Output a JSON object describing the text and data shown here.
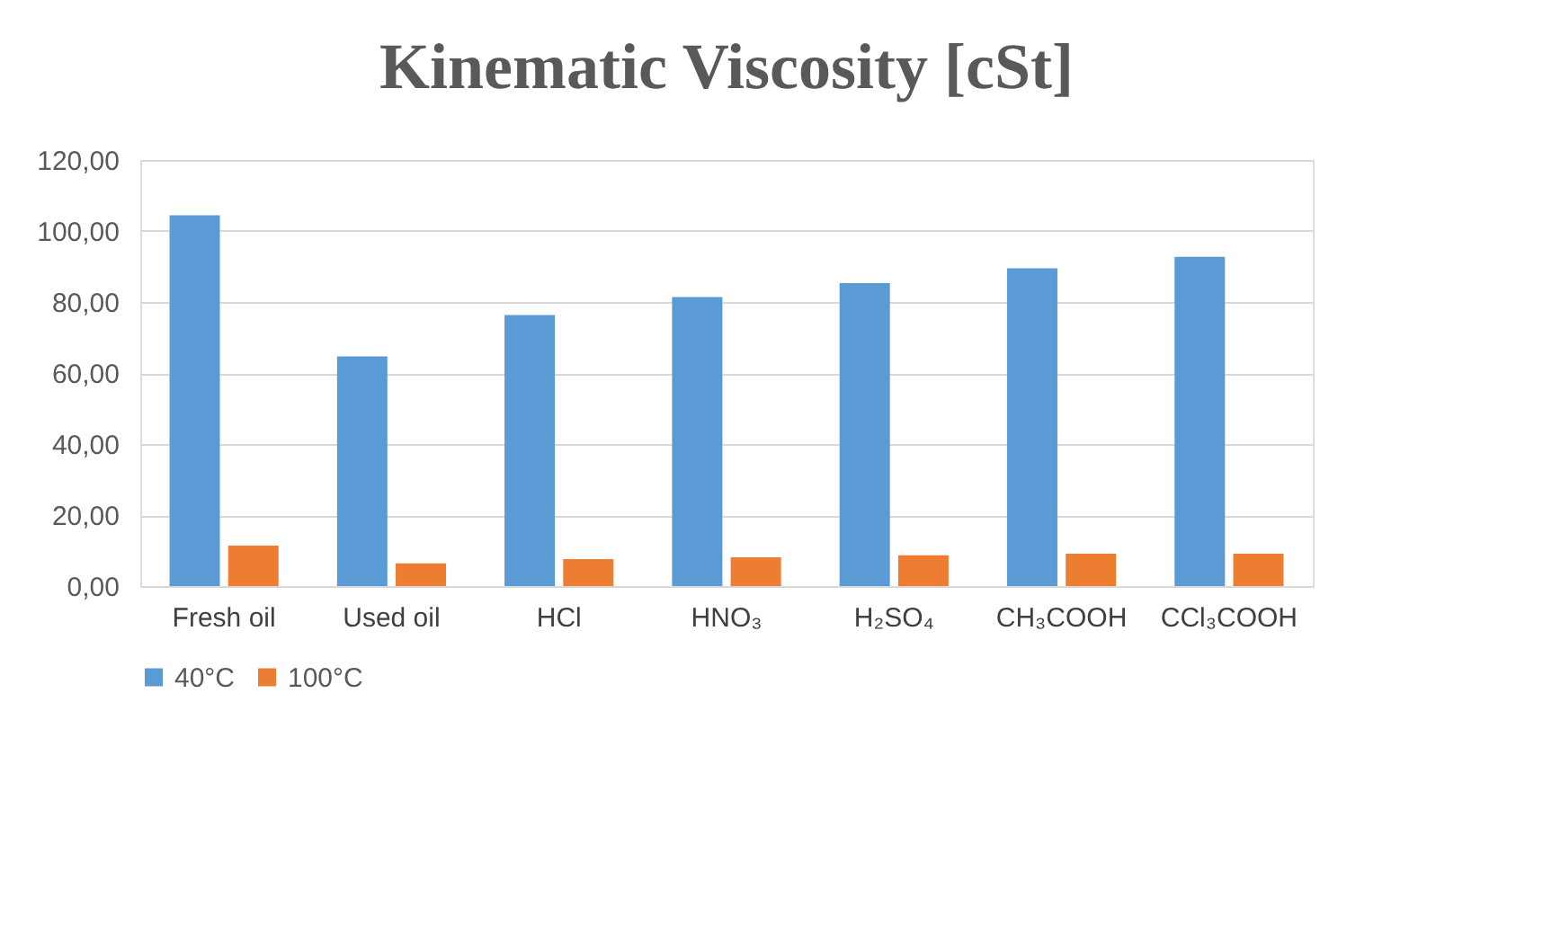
{
  "chart_data": {
    "type": "bar",
    "title": "Kinematic Viscosity [cSt]",
    "categories": [
      "Fresh oil",
      "Used oil",
      "HCl",
      "HNO₃",
      "H₂SO₄",
      "CH₃COOH",
      "CCl₃COOH"
    ],
    "series": [
      {
        "name": "40°C",
        "color": "#5b9bd5",
        "values": [
          104.4,
          64.7,
          76.3,
          81.4,
          85.3,
          89.5,
          92.7
        ]
      },
      {
        "name": "100°C",
        "color": "#ed7d31",
        "values": [
          11.4,
          6.4,
          7.6,
          8.1,
          8.7,
          9.1,
          9.1
        ]
      }
    ],
    "ylim": [
      0,
      120
    ],
    "yticks": [
      {
        "value": 0,
        "label": "0,00"
      },
      {
        "value": 20,
        "label": "20,00"
      },
      {
        "value": 40,
        "label": "40,00"
      },
      {
        "value": 60,
        "label": "60,00"
      },
      {
        "value": 80,
        "label": "80,00"
      },
      {
        "value": 100,
        "label": "100,00"
      },
      {
        "value": 120,
        "label": "120,00"
      }
    ],
    "grid": "y",
    "legend": "bottom"
  }
}
